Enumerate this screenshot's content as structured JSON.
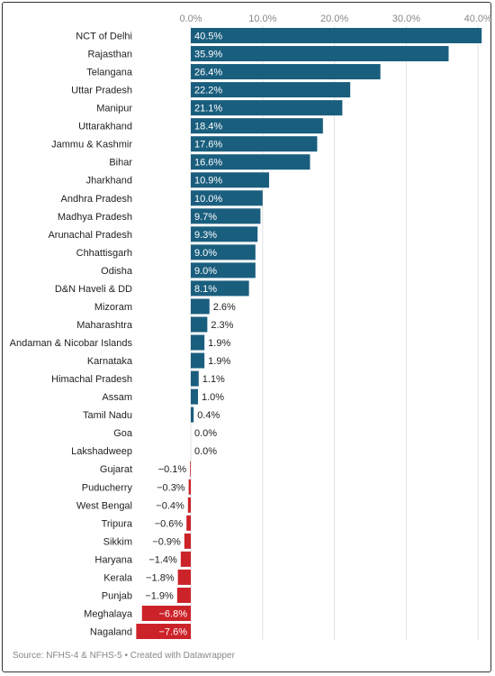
{
  "chart_data": {
    "type": "bar",
    "orientation": "horizontal",
    "categories": [
      "NCT of Delhi",
      "Rajasthan",
      "Telangana",
      "Uttar Pradesh",
      "Manipur",
      "Uttarakhand",
      "Jammu & Kashmir",
      "Bihar",
      "Jharkhand",
      "Andhra Pradesh",
      "Madhya Pradesh",
      "Arunachal Pradesh",
      "Chhattisgarh",
      "Odisha",
      "D&N Haveli & DD",
      "Mizoram",
      "Maharashtra",
      "Andaman & Nicobar Islands",
      "Karnataka",
      "Himachal Pradesh",
      "Assam",
      "Tamil Nadu",
      "Goa",
      "Lakshadweep",
      "Gujarat",
      "Puducherry",
      "West Bengal",
      "Tripura",
      "Sikkim",
      "Haryana",
      "Kerala",
      "Punjab",
      "Meghalaya",
      "Nagaland"
    ],
    "values": [
      40.5,
      35.9,
      26.4,
      22.2,
      21.1,
      18.4,
      17.6,
      16.6,
      10.9,
      10.0,
      9.7,
      9.3,
      9.0,
      9.0,
      8.1,
      2.6,
      2.3,
      1.9,
      1.9,
      1.1,
      1.0,
      0.4,
      0.0,
      0.0,
      -0.1,
      -0.3,
      -0.4,
      -0.6,
      -0.9,
      -1.4,
      -1.8,
      -1.9,
      -6.8,
      -7.6
    ],
    "value_labels": [
      "40.5%",
      "35.9%",
      "26.4%",
      "22.2%",
      "21.1%",
      "18.4%",
      "17.6%",
      "16.6%",
      "10.9%",
      "10.0%",
      "9.7%",
      "9.3%",
      "9.0%",
      "9.0%",
      "8.1%",
      "2.6%",
      "2.3%",
      "1.9%",
      "1.9%",
      "1.1%",
      "1.0%",
      "0.4%",
      "0.0%",
      "0.0%",
      "−0.1%",
      "−0.3%",
      "−0.4%",
      "−0.6%",
      "−0.9%",
      "−1.4%",
      "−1.8%",
      "−1.9%",
      "−6.8%",
      "−7.6%"
    ],
    "xticks": [
      "0.0%",
      "10.0%",
      "20.0%",
      "30.0%",
      "40.0%"
    ],
    "xtick_values": [
      0,
      10,
      20,
      30,
      40
    ],
    "xlim": [
      -7.6,
      40.5
    ],
    "grid": "vertical",
    "colors": {
      "positive": "#1a5e7e",
      "negative": "#cc2229"
    },
    "source": "Source: NFHS-4 & NFHS-5 • Created with Datawrapper"
  }
}
